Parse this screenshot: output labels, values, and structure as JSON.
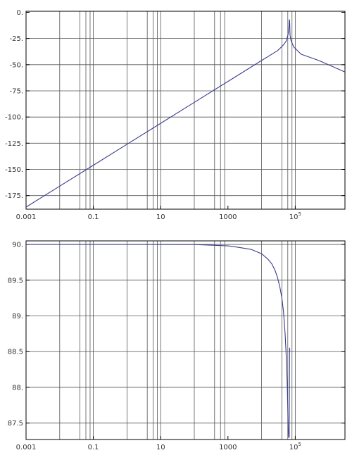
{
  "chart_data": [
    {
      "type": "line",
      "title": "",
      "xlabel": "",
      "ylabel": "",
      "xscale": "log",
      "xlim": [
        0.001,
        3000000
      ],
      "ylim": [
        -188,
        1
      ],
      "grid": true,
      "x_tick_labels": [
        {
          "x": 0.001,
          "label": "0.001"
        },
        {
          "x": 0.1,
          "label": "0.1"
        },
        {
          "x": 10,
          "label": "10"
        },
        {
          "x": 1000,
          "label": "1000"
        },
        {
          "x": 100000,
          "label": "10",
          "sup": "5"
        }
      ],
      "y_ticks": [
        0,
        -25,
        -50,
        -75,
        -100,
        -125,
        -150,
        -175
      ],
      "y_tick_labels": [
        "0.",
        "-25.",
        "-50.",
        "-75.",
        "-100.",
        "-125.",
        "-150.",
        "-175."
      ],
      "x_gridlines": [
        0.01,
        0.04,
        0.06,
        0.08,
        0.1,
        1,
        4,
        6,
        8,
        10,
        100,
        400,
        600,
        800,
        10000,
        40000,
        60000,
        80000,
        100000
      ],
      "series": [
        {
          "color": "#3b3b8f",
          "x": [
            0.001,
            0.01,
            0.1,
            1,
            10,
            100,
            1000,
            10000,
            30000,
            45000,
            55000,
            62000,
            65000,
            66000,
            67000,
            68000,
            69000,
            70000,
            75000,
            90000,
            150000,
            500000,
            3000000
          ],
          "y": [
            -186,
            -166,
            -146,
            -126,
            -106,
            -86,
            -66,
            -46,
            -36.5,
            -31,
            -27,
            -20,
            -14,
            -10,
            -7,
            -8,
            -15,
            -22,
            -27,
            -33,
            -40,
            -46,
            -57
          ]
        }
      ]
    },
    {
      "type": "line",
      "title": "",
      "xlabel": "",
      "ylabel": "",
      "xscale": "log",
      "xlim": [
        0.001,
        3000000
      ],
      "ylim": [
        87.27,
        90.05
      ],
      "grid": true,
      "x_tick_labels": [
        {
          "x": 0.001,
          "label": "0.001"
        },
        {
          "x": 0.1,
          "label": "0.1"
        },
        {
          "x": 10,
          "label": "10"
        },
        {
          "x": 1000,
          "label": "1000"
        },
        {
          "x": 100000,
          "label": "10",
          "sup": "5"
        }
      ],
      "y_ticks": [
        90,
        89.5,
        89,
        88.5,
        88,
        87.5
      ],
      "y_tick_labels": [
        "90.",
        "89.5",
        "89.",
        "88.5",
        "88.",
        "87.5"
      ],
      "x_gridlines": [
        0.01,
        0.04,
        0.06,
        0.08,
        0.1,
        1,
        4,
        6,
        8,
        10,
        100,
        400,
        600,
        800,
        10000,
        40000,
        60000,
        80000,
        100000
      ],
      "series": [
        {
          "color": "#3b3b8f",
          "x": [
            0.001,
            1,
            100,
            300,
            1000,
            2000,
            5000,
            10000,
            15000,
            20000,
            25000,
            30000,
            35000,
            40000,
            45000,
            50000,
            55000,
            58000,
            60000,
            62000,
            64000,
            66000,
            67000,
            68000,
            69000
          ],
          "y": [
            90,
            90,
            89.999,
            89.99,
            89.98,
            89.96,
            89.93,
            89.87,
            89.8,
            89.73,
            89.64,
            89.53,
            89.4,
            89.25,
            89.05,
            88.75,
            88.35,
            88.0,
            87.7,
            87.4,
            87.3,
            87.3,
            87.9,
            88.55,
            88.5
          ]
        }
      ]
    }
  ]
}
